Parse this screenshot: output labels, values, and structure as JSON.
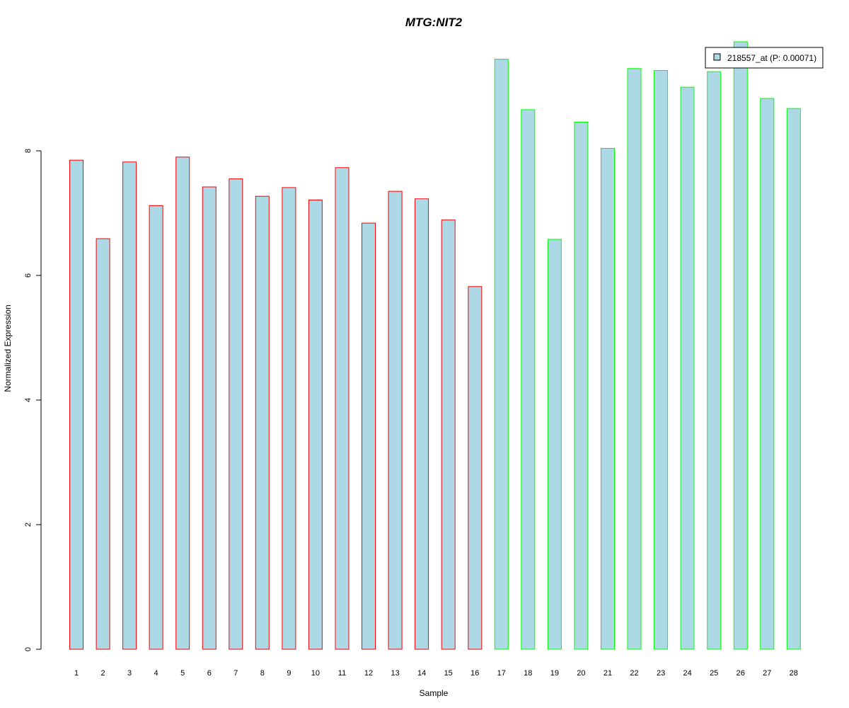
{
  "chart_data": {
    "type": "bar",
    "title": "MTG:NIT2",
    "xlabel": "Sample",
    "ylabel": "Normalized Expression",
    "categories": [
      "1",
      "2",
      "3",
      "4",
      "5",
      "6",
      "7",
      "8",
      "9",
      "10",
      "11",
      "12",
      "13",
      "14",
      "15",
      "16",
      "17",
      "18",
      "19",
      "20",
      "21",
      "22",
      "23",
      "24",
      "25",
      "26",
      "27",
      "28"
    ],
    "series": [
      {
        "name": "218557_at (P: 0.00071)",
        "values": [
          7.85,
          6.59,
          7.82,
          7.12,
          7.9,
          7.42,
          7.55,
          7.27,
          7.41,
          7.21,
          7.73,
          6.84,
          7.35,
          7.23,
          6.89,
          5.82,
          9.47,
          8.66,
          6.58,
          8.46,
          8.04,
          9.32,
          9.29,
          9.02,
          9.27,
          9.75,
          8.84,
          8.68
        ]
      }
    ],
    "group_colors": [
      "#FF0000",
      "#FF0000",
      "#FF0000",
      "#FF0000",
      "#FF0000",
      "#FF0000",
      "#FF0000",
      "#FF0000",
      "#FF0000",
      "#FF0000",
      "#FF0000",
      "#FF0000",
      "#FF0000",
      "#FF0000",
      "#FF0000",
      "#FF0000",
      "#00FF00",
      "#00FF00",
      "#00FF00",
      "#00FF00",
      "#00FF00",
      "#00FF00",
      "#00FF00",
      "#00FF00",
      "#00FF00",
      "#00FF00",
      "#00FF00",
      "#00FF00"
    ],
    "fill_color": "#ADD8E6",
    "title_color": "#0000CC",
    "yticks": [
      0,
      2,
      4,
      6,
      8
    ],
    "ylim": [
      0,
      9.75
    ],
    "grid": false,
    "legend_position": "top-right"
  }
}
